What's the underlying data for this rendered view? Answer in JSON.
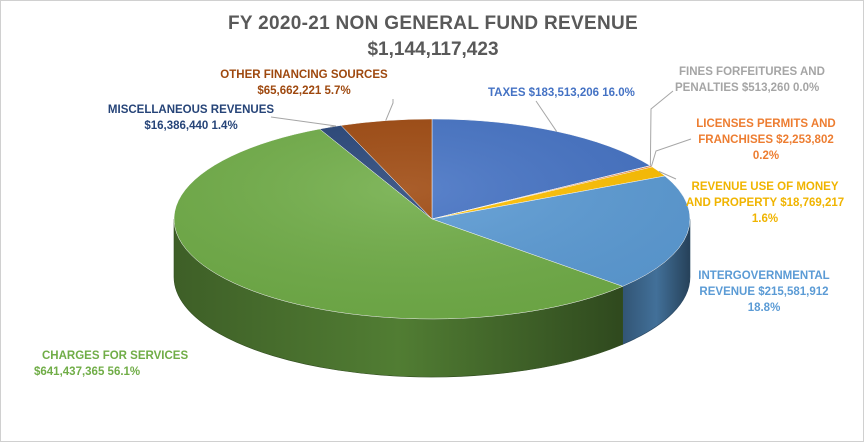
{
  "chart_data": {
    "type": "pie",
    "title": "FY 2020-21 NON GENERAL FUND REVENUE",
    "subtitle": "$1,144,117,423",
    "slices": [
      {
        "label": "TAXES",
        "value": 183513206,
        "value_text": "$183,513,206",
        "percent_text": "16.0%",
        "color": "#4472c4",
        "label_color": "#4472c4"
      },
      {
        "label": "FINES FORFEITURES AND PENALTIES",
        "value": 513260,
        "value_text": "$513,260",
        "percent_text": "0.0%",
        "color": "#a5a5a5",
        "label_color": "#a5a5a5"
      },
      {
        "label": "LICENSES PERMITS AND FRANCHISES",
        "value": 2253802,
        "value_text": "$2,253,802",
        "percent_text": "0.2%",
        "color": "#ed7d31",
        "label_color": "#ed7d31"
      },
      {
        "label": "REVENUE USE OF MONEY AND PROPERTY",
        "value": 18769217,
        "value_text": "$18,769,217",
        "percent_text": "1.6%",
        "color": "#ffc000",
        "label_color": "#f0b400"
      },
      {
        "label": "INTERGOVERNMENTAL REVENUE",
        "value": 215581912,
        "value_text": "$215,581,912",
        "percent_text": "18.8%",
        "color": "#5b9bd5",
        "label_color": "#5b9bd5"
      },
      {
        "label": "CHARGES FOR SERVICES",
        "value": 641437365,
        "value_text": "$641,437,365",
        "percent_text": "56.1%",
        "color": "#70ad47",
        "label_color": "#70ad47"
      },
      {
        "label": "MISCELLANEOUS REVENUES",
        "value": 16386440,
        "value_text": "$16,386,440",
        "percent_text": "1.4%",
        "color": "#264478",
        "label_color": "#264478"
      },
      {
        "label": "OTHER FINANCING SOURCES",
        "value": 65662221,
        "value_text": "$65,662,221",
        "percent_text": "5.7%",
        "color": "#9e480e",
        "label_color": "#9e480e"
      }
    ],
    "labels": {
      "taxes": "TAXES  $183,513,206  16.0%",
      "fines_1": "FINES FORFEITURES AND",
      "fines_2": "PENALTIES  $513,260  0.0%",
      "licenses_1": "LICENSES PERMITS AND",
      "licenses_2": "FRANCHISES  $2,253,802",
      "licenses_3": "0.2%",
      "revenue_use_1": "REVENUE USE OF MONEY",
      "revenue_use_2": "AND PROPERTY  $18,769,217",
      "revenue_use_3": "1.6%",
      "intergov_1": "INTERGOVERNMENTAL",
      "intergov_2": "REVENUE  $215,581,912",
      "intergov_3": "18.8%",
      "charges_1": "CHARGES FOR SERVICES",
      "charges_2": "$641,437,365  56.1%",
      "misc_1": "MISCELLANEOUS REVENUES",
      "misc_2": "$16,386,440  1.4%",
      "other_1": "OTHER FINANCING SOURCES",
      "other_2": "$65,662,221  5.7%"
    },
    "start_angle_deg": 0,
    "direction": "clockwise",
    "style": "3d",
    "legend": "none"
  }
}
